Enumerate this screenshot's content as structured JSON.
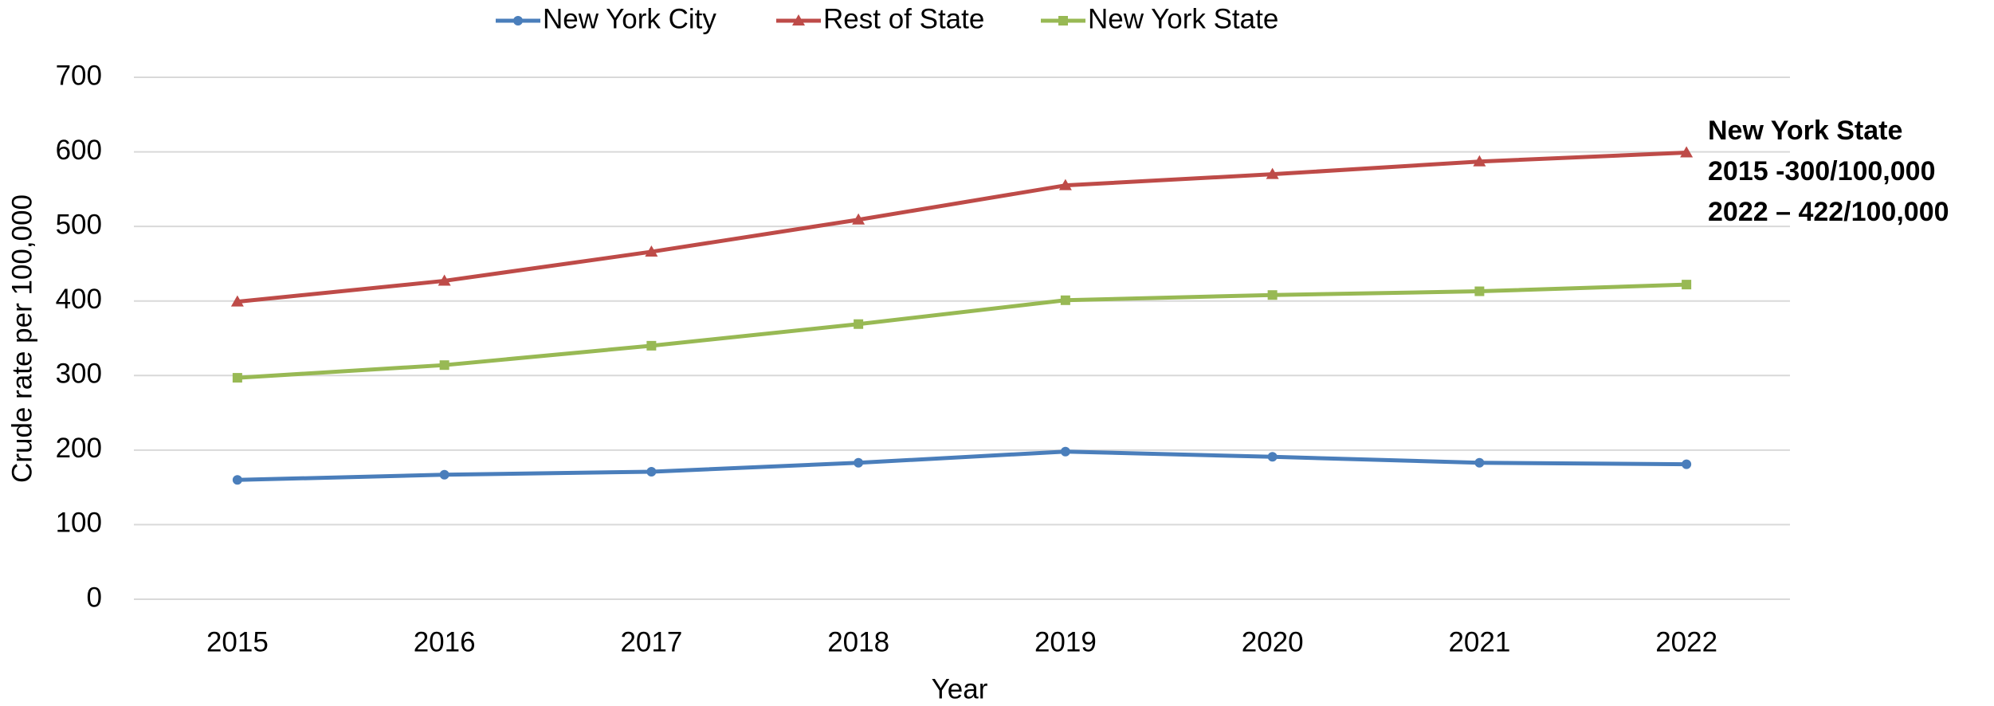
{
  "chart_data": {
    "type": "line",
    "categories": [
      "2015",
      "2016",
      "2017",
      "2018",
      "2019",
      "2020",
      "2021",
      "2022"
    ],
    "series": [
      {
        "name": "New York City",
        "color": "#4a7ebb",
        "marker": "circle",
        "values": [
          160,
          167,
          171,
          183,
          198,
          191,
          183,
          181
        ]
      },
      {
        "name": "Rest of State",
        "color": "#be4b48",
        "marker": "triangle",
        "values": [
          399,
          427,
          466,
          509,
          555,
          570,
          587,
          599
        ]
      },
      {
        "name": "New York State",
        "color": "#98b954",
        "marker": "square",
        "values": [
          297,
          314,
          340,
          369,
          401,
          408,
          413,
          422
        ]
      }
    ],
    "xlabel": "Year",
    "ylabel": "Crude rate per 100,000",
    "ylim": [
      0,
      700
    ],
    "yticks": [
      0,
      100,
      200,
      300,
      400,
      500,
      600,
      700
    ],
    "grid": true,
    "legend": "top",
    "annotation": [
      "New York State",
      "2015 -300/100,000",
      "2022 – 422/100,000"
    ]
  }
}
